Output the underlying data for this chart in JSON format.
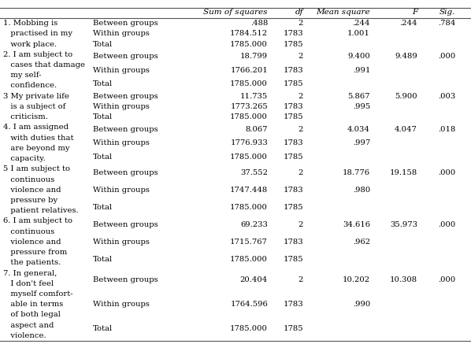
{
  "rows": [
    {
      "item_lines": [
        "1. Mobbing is",
        "   practised in my",
        "   work place."
      ],
      "groups": [
        "Between groups",
        "Within groups",
        "Total"
      ],
      "sum_of_squares": [
        ".488",
        "1784.512",
        "1785.000"
      ],
      "df": [
        "2",
        "1783",
        "1785"
      ],
      "mean_square": [
        ".244",
        "1.001",
        ""
      ],
      "F": [
        ".244",
        "",
        ""
      ],
      "Sig": [
        ".784",
        "",
        ""
      ]
    },
    {
      "item_lines": [
        "2. I am subject to",
        "   cases that damage",
        "   my self-",
        "   confidence."
      ],
      "groups": [
        "Between groups",
        "Within groups",
        "Total"
      ],
      "sum_of_squares": [
        "18.799",
        "1766.201",
        "1785.000"
      ],
      "df": [
        "2",
        "1783",
        "1785"
      ],
      "mean_square": [
        "9.400",
        ".991",
        ""
      ],
      "F": [
        "9.489",
        "",
        ""
      ],
      "Sig": [
        ".000",
        "",
        ""
      ]
    },
    {
      "item_lines": [
        "3 My private life",
        "   is a subject of",
        "   criticism."
      ],
      "groups": [
        "Between groups",
        "Within groups",
        "Total"
      ],
      "sum_of_squares": [
        "11.735",
        "1773.265",
        "1785.000"
      ],
      "df": [
        "2",
        "1783",
        "1785"
      ],
      "mean_square": [
        "5.867",
        ".995",
        ""
      ],
      "F": [
        "5.900",
        "",
        ""
      ],
      "Sig": [
        ".003",
        "",
        ""
      ]
    },
    {
      "item_lines": [
        "4. I am assigned",
        "   with duties that",
        "   are beyond my",
        "   capacity."
      ],
      "groups": [
        "Between groups",
        "Within groups",
        "Total"
      ],
      "sum_of_squares": [
        "8.067",
        "1776.933",
        "1785.000"
      ],
      "df": [
        "2",
        "1783",
        "1785"
      ],
      "mean_square": [
        "4.034",
        ".997",
        ""
      ],
      "F": [
        "4.047",
        "",
        ""
      ],
      "Sig": [
        ".018",
        "",
        ""
      ]
    },
    {
      "item_lines": [
        "5 I am subject to",
        "   continuous",
        "   violence and",
        "   pressure by",
        "   patient relatives."
      ],
      "groups": [
        "Between groups",
        "Within groups",
        "Total"
      ],
      "sum_of_squares": [
        "37.552",
        "1747.448",
        "1785.000"
      ],
      "df": [
        "2",
        "1783",
        "1785"
      ],
      "mean_square": [
        "18.776",
        ".980",
        ""
      ],
      "F": [
        "19.158",
        "",
        ""
      ],
      "Sig": [
        ".000",
        "",
        ""
      ]
    },
    {
      "item_lines": [
        "6. I am subject to",
        "   continuous",
        "   violence and",
        "   pressure from",
        "   the patients."
      ],
      "groups": [
        "Between groups",
        "Within groups",
        "Total"
      ],
      "sum_of_squares": [
        "69.233",
        "1715.767",
        "1785.000"
      ],
      "df": [
        "2",
        "1783",
        "1785"
      ],
      "mean_square": [
        "34.616",
        ".962",
        ""
      ],
      "F": [
        "35.973",
        "",
        ""
      ],
      "Sig": [
        ".000",
        "",
        ""
      ]
    },
    {
      "item_lines": [
        "7. In general,",
        "   I don't feel",
        "   myself comfort-",
        "   able in terms",
        "   of both legal",
        "   aspect and",
        "   violence."
      ],
      "groups": [
        "Between groups",
        "Within groups",
        "Total"
      ],
      "sum_of_squares": [
        "20.404",
        "1764.596",
        "1785.000"
      ],
      "df": [
        "2",
        "1783",
        "1785"
      ],
      "mean_square": [
        "10.202",
        ".990",
        ""
      ],
      "F": [
        "10.308",
        "",
        ""
      ],
      "Sig": [
        ".000",
        "",
        ""
      ]
    }
  ],
  "headers": [
    "Sum of squares",
    "df",
    "Mean square",
    "F",
    "Sig."
  ],
  "bg_color": "#ffffff",
  "text_color": "#000000",
  "line_color": "#555555",
  "body_fontsize": 7.2,
  "header_fontsize": 7.5
}
